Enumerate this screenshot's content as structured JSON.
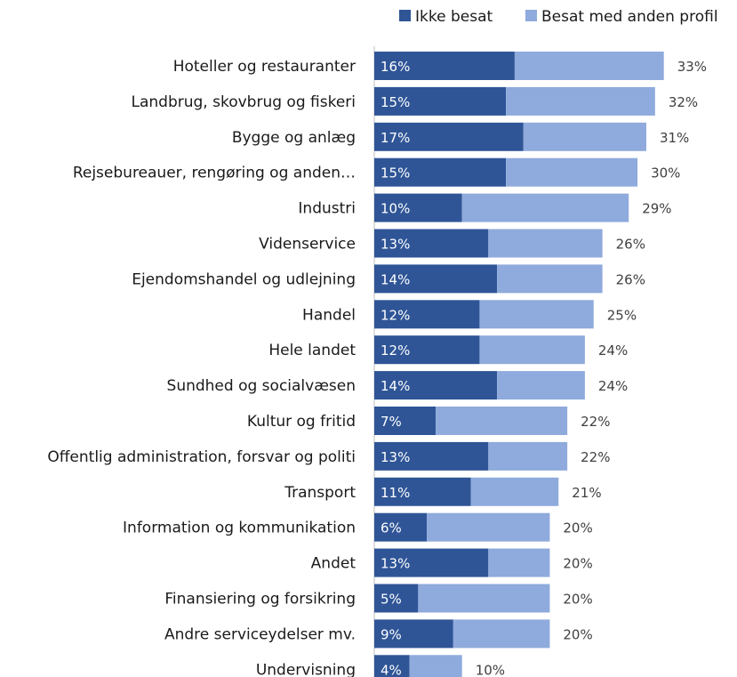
{
  "colors": {
    "ikke_besat": "#2f5597",
    "anden_profil": "#8faadc",
    "axis": "#bfbfbf"
  },
  "legend": [
    {
      "name": "Ikke besat",
      "color_key": "ikke_besat"
    },
    {
      "name": "Besat med anden profil",
      "color_key": "anden_profil"
    }
  ],
  "chart_data": {
    "type": "bar",
    "orientation": "horizontal",
    "stacked": true,
    "title": "",
    "xlabel": "",
    "ylabel": "",
    "legend_position": "top-right",
    "grid": false,
    "categories": [
      "Hoteller og restauranter",
      "Landbrug, skovbrug og fiskeri",
      "Bygge og anlæg",
      "Rejsebureauer, rengøring og anden…",
      "Industri",
      "Videnservice",
      "Ejendomshandel og udlejning",
      "Handel",
      "Hele landet",
      "Sundhed og socialvæsen",
      "Kultur og fritid",
      "Offentlig administration, forsvar og politi",
      "Transport",
      "Information og kommunikation",
      "Andet",
      "Finansiering og forsikring",
      "Andre serviceydelser mv.",
      "Undervisning"
    ],
    "series": [
      {
        "name": "Ikke besat",
        "values": [
          16,
          15,
          17,
          15,
          10,
          13,
          14,
          12,
          12,
          14,
          7,
          13,
          11,
          6,
          13,
          5,
          9,
          4
        ]
      }
    ],
    "totals": [
      33,
      32,
      31,
      30,
      29,
      26,
      26,
      25,
      24,
      24,
      22,
      22,
      21,
      20,
      20,
      20,
      20,
      10
    ],
    "segment_labels": [
      "16%",
      "15%",
      "17%",
      "15%",
      "10%",
      "13%",
      "14%",
      "12%",
      "12%",
      "14%",
      "7%",
      "13%",
      "11%",
      "6%",
      "13%",
      "5%",
      "9%",
      "4%"
    ],
    "total_labels": [
      "33%",
      "32%",
      "31%",
      "30%",
      "29%",
      "26%",
      "26%",
      "25%",
      "24%",
      "24%",
      "22%",
      "22%",
      "21%",
      "20%",
      "20%",
      "20%",
      "20%",
      "10%"
    ]
  }
}
